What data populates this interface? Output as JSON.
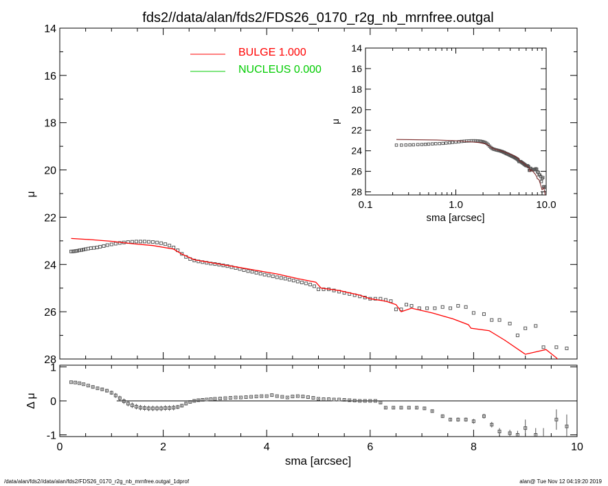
{
  "title": "fds2//data/alan/fds2/FDS26_0170_r2g_nb_mrnfree.outgal",
  "footer": {
    "left": "/data/alan/fds2//data/alan/fds2/FDS26_0170_r2g_nb_mrnfree.outgal_1dprof",
    "right": "alan@  Tue Nov 12 04:19:20 2019"
  },
  "colors": {
    "bulge": "#ff0000",
    "nucleus": "#00cc00",
    "data": "#555555",
    "model_inset": "#7a2a2a"
  },
  "chart_data": [
    {
      "type": "scatter",
      "panel": "main profile",
      "xlabel": "",
      "ylabel": "μ",
      "xlim": [
        0,
        10
      ],
      "ylim": [
        28,
        14
      ],
      "yticks": [
        14,
        16,
        18,
        20,
        22,
        24,
        26,
        28
      ],
      "ytick_labels": [
        "14",
        "16",
        "18",
        "20",
        "22",
        "24",
        "26",
        "28"
      ],
      "legend": [
        {
          "label": "BULGE  1.000",
          "color": "#ff0000"
        },
        {
          "label": "NUCLEUS  0.000",
          "color": "#00cc00"
        }
      ],
      "legend_position": "top-center",
      "series": [
        {
          "name": "",
          "kind": "points",
          "x": [
            0.22,
            0.25,
            0.28,
            0.31,
            0.34,
            0.38,
            0.42,
            0.46,
            0.5,
            0.55,
            0.6,
            0.66,
            0.72,
            0.78,
            0.85,
            0.92,
            1.0,
            1.08,
            1.16,
            1.24,
            1.32,
            1.4,
            1.48,
            1.56,
            1.64,
            1.72,
            1.8,
            1.88,
            1.96,
            2.04,
            2.12,
            2.2,
            2.28,
            2.36,
            2.44,
            2.52,
            2.6,
            2.68,
            2.76,
            2.84,
            2.92,
            3.0,
            3.08,
            3.16,
            3.24,
            3.32,
            3.4,
            3.48,
            3.56,
            3.64,
            3.72,
            3.8,
            3.88,
            3.96,
            4.04,
            4.12,
            4.2,
            4.28,
            4.36,
            4.44,
            4.52,
            4.6,
            4.68,
            4.76,
            4.84,
            4.92,
            5.0,
            5.1,
            5.2,
            5.3,
            5.4,
            5.5,
            5.6,
            5.7,
            5.8,
            5.9,
            6.0,
            6.1,
            6.2,
            6.3,
            6.4,
            6.5,
            6.6,
            6.7,
            6.8,
            6.95,
            7.1,
            7.25,
            7.4,
            7.55,
            7.7,
            7.85,
            8.0,
            8.2,
            8.35,
            8.5,
            8.7,
            8.85,
            9.0,
            9.2,
            9.35,
            9.6,
            9.8
          ],
          "y": [
            23.45,
            23.45,
            23.44,
            23.43,
            23.42,
            23.4,
            23.39,
            23.37,
            23.35,
            23.33,
            23.31,
            23.3,
            23.28,
            23.25,
            23.22,
            23.18,
            23.15,
            23.12,
            23.09,
            23.07,
            23.05,
            23.04,
            23.03,
            23.03,
            23.03,
            23.04,
            23.05,
            23.07,
            23.1,
            23.14,
            23.2,
            23.28,
            23.4,
            23.55,
            23.68,
            23.77,
            23.83,
            23.87,
            23.9,
            23.93,
            23.96,
            23.98,
            24.01,
            24.04,
            24.07,
            24.11,
            24.15,
            24.19,
            24.24,
            24.28,
            24.31,
            24.35,
            24.39,
            24.43,
            24.46,
            24.5,
            24.54,
            24.57,
            24.6,
            24.64,
            24.68,
            24.72,
            24.76,
            24.8,
            24.85,
            24.92,
            25.05,
            25.05,
            25.05,
            25.1,
            25.15,
            25.2,
            25.25,
            25.3,
            25.35,
            25.4,
            25.45,
            25.45,
            25.45,
            25.5,
            25.55,
            25.9,
            25.9,
            25.7,
            25.75,
            25.85,
            25.85,
            25.85,
            25.8,
            25.85,
            25.75,
            25.8,
            26.05,
            26.1,
            26.35,
            26.35,
            26.5,
            27.0,
            26.7,
            26.6,
            27.5,
            27.5,
            27.55
          ],
          "color": "#555555"
        },
        {
          "name": "BULGE  1.000",
          "kind": "line",
          "x": [
            0.22,
            0.6,
            1.0,
            1.4,
            1.8,
            2.2,
            2.35,
            2.6,
            3.0,
            3.4,
            3.8,
            4.2,
            4.6,
            4.95,
            5.05,
            5.4,
            5.8,
            6.0,
            6.3,
            6.5,
            6.6,
            6.8,
            7.2,
            7.6,
            7.9,
            7.95,
            8.3,
            8.6,
            9.0,
            9.4,
            9.6,
            9.8
          ],
          "y": [
            22.9,
            22.95,
            23.02,
            23.12,
            23.2,
            23.35,
            23.55,
            23.8,
            23.95,
            24.1,
            24.25,
            24.4,
            24.6,
            24.75,
            25.0,
            25.1,
            25.3,
            25.45,
            25.55,
            25.7,
            26.0,
            25.85,
            26.05,
            26.3,
            26.55,
            26.7,
            26.8,
            27.2,
            27.8,
            27.6,
            27.95,
            28.4
          ],
          "color": "#ff0000"
        },
        {
          "name": "NUCLEUS  0.000",
          "kind": "line",
          "x": [],
          "y": [],
          "color": "#00cc00"
        }
      ]
    },
    {
      "type": "line",
      "panel": "residuals",
      "xlabel": "sma [arcsec]",
      "ylabel": "Δ μ",
      "xlim": [
        0,
        10
      ],
      "ylim": [
        -1.05,
        1.05
      ],
      "xticks": [
        0,
        2,
        4,
        6,
        8,
        10
      ],
      "xtick_labels": [
        "0",
        "2",
        "4",
        "6",
        "8",
        "10"
      ],
      "yticks": [
        1,
        0,
        -1
      ],
      "ytick_labels": [
        "1",
        "0",
        "-1"
      ],
      "reference_line": {
        "y": 0,
        "x_from": 1.1,
        "x_to": 10
      },
      "series": [
        {
          "name": "",
          "kind": "points",
          "x": [
            0.22,
            0.3,
            0.38,
            0.46,
            0.55,
            0.64,
            0.73,
            0.82,
            0.91,
            1.0,
            1.08,
            1.16,
            1.24,
            1.32,
            1.4,
            1.48,
            1.56,
            1.64,
            1.72,
            1.8,
            1.88,
            1.96,
            2.04,
            2.12,
            2.2,
            2.28,
            2.36,
            2.44,
            2.52,
            2.6,
            2.68,
            2.76,
            2.84,
            2.92,
            3.0,
            3.1,
            3.2,
            3.3,
            3.4,
            3.5,
            3.6,
            3.7,
            3.8,
            3.9,
            4.0,
            4.1,
            4.2,
            4.3,
            4.4,
            4.5,
            4.6,
            4.7,
            4.8,
            4.9,
            5.0,
            5.1,
            5.2,
            5.3,
            5.4,
            5.5,
            5.6,
            5.7,
            5.8,
            5.9,
            6.0,
            6.1,
            6.2,
            6.3,
            6.45,
            6.6,
            6.75,
            6.9,
            7.05,
            7.2,
            7.4,
            7.55,
            7.7,
            7.85,
            8.0,
            8.2,
            8.35,
            8.5,
            8.7,
            8.85,
            9.0,
            9.2,
            9.35,
            9.6,
            9.8
          ],
          "y": [
            0.55,
            0.54,
            0.52,
            0.49,
            0.45,
            0.41,
            0.37,
            0.34,
            0.3,
            0.24,
            0.16,
            0.08,
            -0.01,
            -0.08,
            -0.13,
            -0.17,
            -0.2,
            -0.21,
            -0.22,
            -0.22,
            -0.22,
            -0.22,
            -0.21,
            -0.21,
            -0.2,
            -0.18,
            -0.14,
            -0.08,
            -0.03,
            0.0,
            0.02,
            0.03,
            0.04,
            0.05,
            0.06,
            0.07,
            0.08,
            0.09,
            0.1,
            0.1,
            0.11,
            0.12,
            0.13,
            0.14,
            0.14,
            0.17,
            0.14,
            0.12,
            0.1,
            0.13,
            0.14,
            0.13,
            0.11,
            0.09,
            0.06,
            0.05,
            0.05,
            0.04,
            0.04,
            0.03,
            0.02,
            0.01,
            0.0,
            0.0,
            0.0,
            0.0,
            -0.05,
            -0.2,
            -0.2,
            -0.2,
            -0.2,
            -0.2,
            -0.22,
            -0.3,
            -0.45,
            -0.55,
            -0.55,
            -0.55,
            -0.6,
            -0.45,
            -0.7,
            -0.9,
            -0.95,
            -1.0,
            -0.8,
            -1.0,
            -1.1,
            -0.55,
            -0.75
          ],
          "yerr": [
            0.02,
            0.02,
            0.02,
            0.02,
            0.02,
            0.03,
            0.03,
            0.04,
            0.05,
            0.06,
            0.07,
            0.07,
            0.08,
            0.08,
            0.08,
            0.08,
            0.08,
            0.08,
            0.08,
            0.08,
            0.08,
            0.08,
            0.08,
            0.08,
            0.08,
            0.06,
            0.05,
            0.05,
            0.04,
            0.03,
            0.03,
            0.03,
            0.02,
            0.02,
            0.02,
            0.02,
            0.02,
            0.02,
            0.02,
            0.02,
            0.02,
            0.02,
            0.02,
            0.02,
            0.02,
            0.02,
            0.02,
            0.02,
            0.02,
            0.02,
            0.02,
            0.02,
            0.02,
            0.02,
            0.02,
            0.02,
            0.02,
            0.02,
            0.02,
            0.02,
            0.02,
            0.02,
            0.02,
            0.02,
            0.02,
            0.02,
            0.03,
            0.03,
            0.03,
            0.03,
            0.03,
            0.04,
            0.04,
            0.04,
            0.05,
            0.05,
            0.06,
            0.06,
            0.07,
            0.07,
            0.08,
            0.1,
            0.1,
            0.12,
            0.25,
            0.2,
            0.3,
            0.3,
            0.35
          ],
          "color": "#555555"
        }
      ]
    },
    {
      "type": "scatter",
      "panel": "inset log profile",
      "xlabel": "sma [arcsec]",
      "ylabel": "μ",
      "xscale": "log",
      "xlim": [
        0.1,
        10
      ],
      "ylim": [
        28.3,
        14
      ],
      "xticks": [
        0.1,
        1,
        10
      ],
      "xtick_labels": [
        "0.1",
        "1.0",
        "10.0"
      ],
      "yticks": [
        14,
        16,
        18,
        20,
        22,
        24,
        26,
        28
      ],
      "ytick_labels": [
        "14",
        "16",
        "18",
        "20",
        "22",
        "24",
        "26",
        "28"
      ],
      "series": [
        {
          "name": "",
          "kind": "points",
          "x": [
            0.22,
            0.25,
            0.28,
            0.31,
            0.34,
            0.38,
            0.42,
            0.46,
            0.5,
            0.55,
            0.6,
            0.66,
            0.72,
            0.78,
            0.85,
            0.92,
            1.0,
            1.08,
            1.16,
            1.24,
            1.32,
            1.4,
            1.48,
            1.56,
            1.64,
            1.72,
            1.8,
            1.88,
            1.96,
            2.04,
            2.12,
            2.2,
            2.28,
            2.36,
            2.44,
            2.52,
            2.6,
            2.68,
            2.76,
            2.84,
            2.92,
            3.0,
            3.08,
            3.16,
            3.24,
            3.32,
            3.4,
            3.48,
            3.56,
            3.64,
            3.72,
            3.8,
            3.88,
            3.96,
            4.04,
            4.12,
            4.2,
            4.28,
            4.36,
            4.44,
            4.52,
            4.6,
            4.68,
            4.76,
            4.84,
            4.92,
            5.0,
            5.1,
            5.2,
            5.3,
            5.4,
            5.5,
            5.6,
            5.7,
            5.8,
            5.9,
            6.0,
            6.1,
            6.2,
            6.3,
            6.4,
            6.5,
            6.6,
            6.7,
            6.8,
            6.95,
            7.1,
            7.25,
            7.4,
            7.55,
            7.7,
            7.85,
            8.0,
            8.2,
            8.35,
            8.5,
            8.7,
            8.85,
            9.0,
            9.2,
            9.35,
            9.6,
            9.8
          ],
          "y": [
            23.45,
            23.45,
            23.44,
            23.43,
            23.42,
            23.4,
            23.39,
            23.37,
            23.35,
            23.33,
            23.31,
            23.3,
            23.28,
            23.25,
            23.22,
            23.18,
            23.15,
            23.12,
            23.09,
            23.07,
            23.05,
            23.04,
            23.03,
            23.03,
            23.03,
            23.04,
            23.05,
            23.07,
            23.1,
            23.14,
            23.2,
            23.28,
            23.4,
            23.55,
            23.68,
            23.77,
            23.83,
            23.87,
            23.9,
            23.93,
            23.96,
            23.98,
            24.01,
            24.04,
            24.07,
            24.11,
            24.15,
            24.19,
            24.24,
            24.28,
            24.31,
            24.35,
            24.39,
            24.43,
            24.46,
            24.5,
            24.54,
            24.57,
            24.6,
            24.64,
            24.68,
            24.72,
            24.76,
            24.8,
            24.85,
            24.92,
            25.05,
            25.05,
            25.05,
            25.1,
            25.15,
            25.2,
            25.25,
            25.3,
            25.35,
            25.4,
            25.45,
            25.45,
            25.45,
            25.5,
            25.55,
            25.9,
            25.9,
            25.7,
            25.75,
            25.85,
            25.85,
            25.85,
            25.8,
            25.85,
            25.75,
            25.8,
            26.05,
            26.1,
            26.35,
            26.35,
            26.5,
            27.0,
            26.7,
            26.6,
            27.5,
            27.5,
            27.55
          ],
          "color": "#555555"
        },
        {
          "name": "",
          "kind": "line",
          "x": [
            0.22,
            0.6,
            1.0,
            1.4,
            1.8,
            2.2,
            2.35,
            2.6,
            3.0,
            3.4,
            3.8,
            4.2,
            4.6,
            4.95,
            5.05,
            5.4,
            5.8,
            6.0,
            6.3,
            6.5,
            6.6,
            6.8,
            7.2,
            7.6,
            7.9,
            7.95,
            8.3,
            8.6,
            9.0,
            9.4,
            9.6,
            9.8
          ],
          "y": [
            22.9,
            22.95,
            23.02,
            23.12,
            23.2,
            23.35,
            23.55,
            23.8,
            23.95,
            24.1,
            24.25,
            24.4,
            24.6,
            24.75,
            25.0,
            25.1,
            25.3,
            25.45,
            25.55,
            25.7,
            26.0,
            25.85,
            26.05,
            26.3,
            26.55,
            26.7,
            26.8,
            27.2,
            27.8,
            27.6,
            27.95,
            28.4
          ],
          "color": "#7a2a2a"
        }
      ]
    }
  ]
}
